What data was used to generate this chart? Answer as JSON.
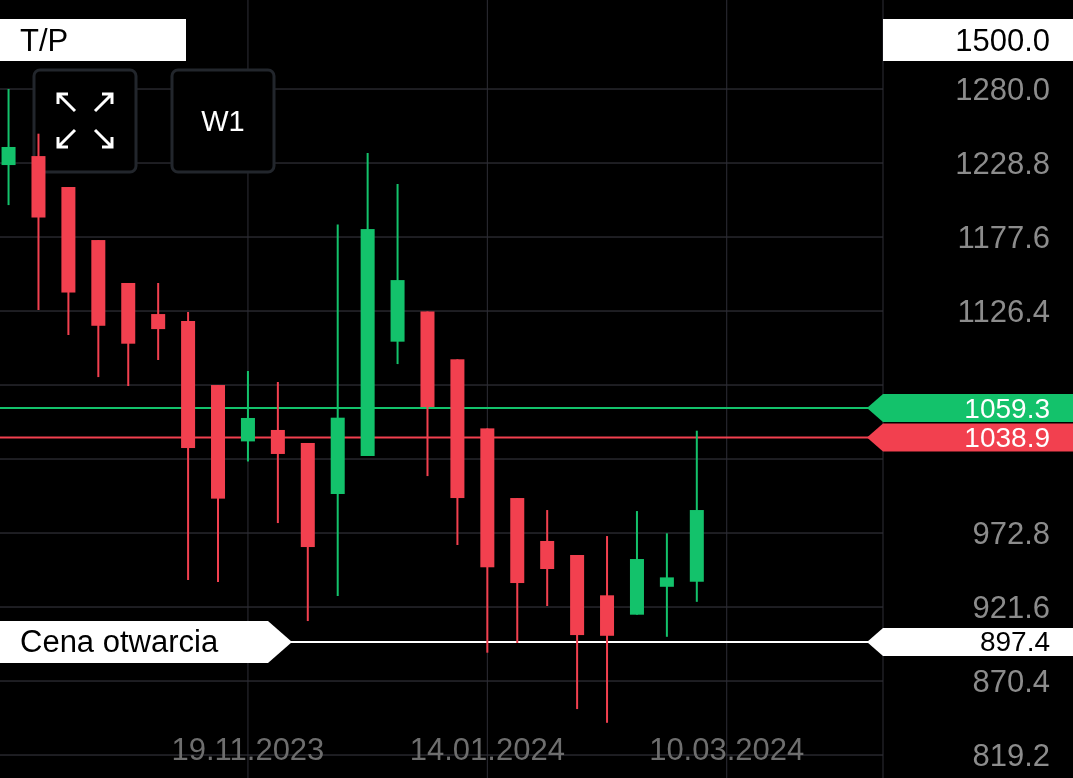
{
  "chart_data": {
    "type": "candlestick",
    "x": [
      "2023-09-24",
      "2023-10-01",
      "2023-10-08",
      "2023-10-15",
      "2023-10-22",
      "2023-10-29",
      "2023-11-05",
      "2023-11-12",
      "2023-11-19",
      "2023-11-26",
      "2023-12-03",
      "2023-12-10",
      "2023-12-17",
      "2023-12-24",
      "2023-12-31",
      "2024-01-07",
      "2024-01-14",
      "2024-01-21",
      "2024-01-28",
      "2024-02-04",
      "2024-02-11",
      "2024-02-18",
      "2024-02-25",
      "2024-03-03"
    ],
    "ohlc": [
      [
        1227.4,
        1280.0,
        1199.7,
        1239.9
      ],
      [
        1233.6,
        1249.1,
        1127.1,
        1191.1
      ],
      [
        1212.2,
        1212.2,
        1109.8,
        1139.2
      ],
      [
        1175.5,
        1175.5,
        1080.7,
        1116.2
      ],
      [
        1145.8,
        1145.8,
        1074.5,
        1103.8
      ],
      [
        1124.3,
        1145.8,
        1092.5,
        1113.9
      ],
      [
        1119.5,
        1125.7,
        940.3,
        1031.6
      ],
      [
        1075.2,
        1075.2,
        938.9,
        996.6
      ],
      [
        1036.2,
        1084.9,
        1022.3,
        1052.4
      ],
      [
        1044.1,
        1077.3,
        979.7,
        1027.5
      ],
      [
        1035.1,
        1035.1,
        911.9,
        963.1
      ],
      [
        999.8,
        1186.2,
        929.2,
        1052.6
      ],
      [
        1026.1,
        1235.7,
        1026.1,
        1183.1
      ],
      [
        1105.2,
        1214.3,
        1089.7,
        1147.8
      ],
      [
        1126.1,
        1126.1,
        1012.2,
        1060.0
      ],
      [
        1093.0,
        1093.0,
        964.5,
        997.0
      ],
      [
        1045.2,
        1045.2,
        890.0,
        949.1
      ],
      [
        997.0,
        997.0,
        896.7,
        938.2
      ],
      [
        967.3,
        988.7,
        922.3,
        947.9
      ],
      [
        957.6,
        957.6,
        851.0,
        902.2
      ],
      [
        929.7,
        970.7,
        841.5,
        901.7
      ],
      [
        916.3,
        988.0,
        916.3,
        954.8
      ],
      [
        935.6,
        972.6,
        901.0,
        942.1
      ],
      [
        939.1,
        1043.6,
        925.2,
        988.7
      ]
    ],
    "colors": [
      "#13c26b",
      "#f2404f",
      "#f2404f",
      "#f2404f",
      "#f2404f",
      "#f2404f",
      "#f2404f",
      "#f2404f",
      "#13c26b",
      "#f2404f",
      "#f2404f",
      "#13c26b",
      "#13c26b",
      "#13c26b",
      "#f2404f",
      "#f2404f",
      "#f2404f",
      "#f2404f",
      "#f2404f",
      "#f2404f",
      "#f2404f",
      "#13c26b",
      "#13c26b",
      "#13c26b"
    ],
    "xlim": [
      "2023-09-22",
      "2024-05-30"
    ],
    "xticks": [
      {
        "value": "2023-11-19",
        "label": "19.11.2023"
      },
      {
        "value": "2024-01-14",
        "label": "14.01.2024"
      },
      {
        "value": "2024-03-10",
        "label": "10.03.2024"
      }
    ],
    "ylim": [
      803.3,
      1341.6
    ],
    "yticks": [
      {
        "value": 819.2,
        "label": "819.2"
      },
      {
        "value": 870.4,
        "label": "870.4"
      },
      {
        "value": 921.6,
        "label": "921.6"
      },
      {
        "value": 972.8,
        "label": "972.8"
      },
      {
        "value": 1024.0,
        "label": null
      },
      {
        "value": 1075.2,
        "label": null
      },
      {
        "value": 1126.4,
        "label": "1126.4"
      },
      {
        "value": 1177.6,
        "label": "1177.6"
      },
      {
        "value": 1228.8,
        "label": "1228.8"
      },
      {
        "value": 1280.0,
        "label": "1280.0"
      }
    ],
    "grid": true,
    "ref_lines": [
      {
        "axis": "y",
        "value": 1059.3,
        "label": "1059.3",
        "color": "#13c26b"
      },
      {
        "axis": "y",
        "value": 1038.9,
        "label": "1038.9",
        "color": "#f2404f"
      },
      {
        "axis": "y",
        "value": 897.4,
        "label": "897.4",
        "color": "#ffffff"
      }
    ],
    "annotations": [
      "T/P",
      "1500.0",
      "W1",
      {
        "text": "Cena otwarcia",
        "y": 897.4
      }
    ]
  }
}
